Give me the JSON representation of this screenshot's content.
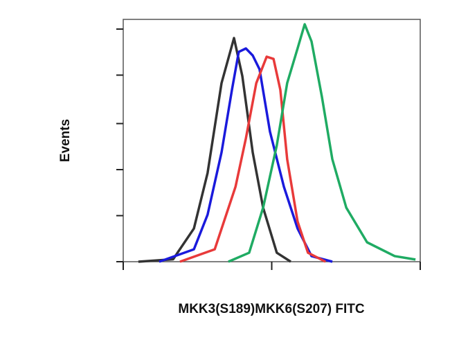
{
  "chart_data": {
    "type": "line",
    "xlabel": "MKK3(S189)MKK6(S207) FITC",
    "ylabel": "Events",
    "xlim": [
      0,
      100
    ],
    "ylim": [
      0,
      100
    ],
    "xticks": [
      0,
      50,
      100
    ],
    "yticks": [
      0,
      19,
      38,
      57,
      77,
      96
    ],
    "series": [
      {
        "color": "#333333",
        "x": [
          5.1,
          16.8,
          23.8,
          28.4,
          33.1,
          37.3,
          40.1,
          43.6,
          47.1,
          51.7,
          56.4
        ],
        "values": [
          0,
          1,
          13.7,
          36.6,
          73.7,
          92.3,
          76.6,
          45.1,
          22.3,
          3.7,
          0
        ]
      },
      {
        "color": "#1a1adc",
        "x": [
          12.1,
          23.8,
          28.4,
          33.1,
          36.6,
          38.9,
          41.3,
          43.6,
          45.9,
          49.4,
          54.1,
          58.7,
          63.4,
          70.4
        ],
        "values": [
          0,
          5.1,
          19.4,
          45.1,
          70.9,
          86.6,
          88.0,
          85.1,
          79.4,
          53.7,
          30.9,
          13.7,
          2.3,
          0
        ]
      },
      {
        "color": "#e83a3a",
        "x": [
          19.1,
          30.8,
          37.8,
          41.3,
          44.8,
          48.3,
          50.6,
          52.9,
          55.2,
          58.7,
          62.2,
          68.1
        ],
        "values": [
          0,
          5.1,
          30.9,
          50.9,
          73.7,
          84.6,
          83.7,
          70.9,
          42.3,
          16.6,
          3.7,
          0
        ]
      },
      {
        "color": "#1fab63",
        "x": [
          35.4,
          42.4,
          47.1,
          51.7,
          55.2,
          58.7,
          61.1,
          63.4,
          66.9,
          70.4,
          75.1,
          82.1,
          91.4,
          98.4
        ],
        "values": [
          0,
          3.7,
          22.3,
          48.0,
          73.7,
          88.0,
          98.0,
          90.9,
          68.0,
          42.3,
          22.3,
          8.0,
          2.3,
          0.9
        ]
      }
    ]
  }
}
